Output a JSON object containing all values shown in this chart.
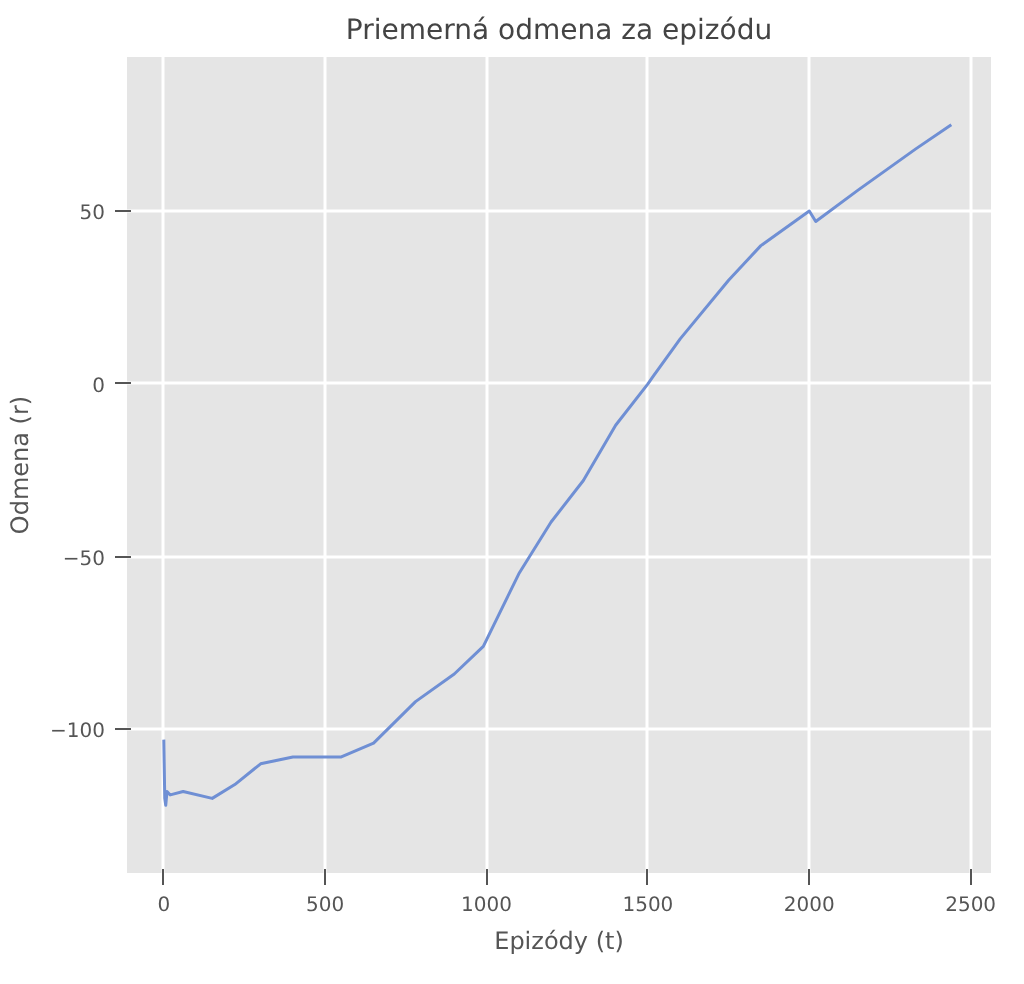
{
  "chart_data": {
    "type": "line",
    "title": "Priemerná odmena za epizódu",
    "xlabel": "Epizódy (t)",
    "ylabel": "Odmena (r)",
    "xlim": [
      -114,
      2563
    ],
    "ylim": [
      -141.6,
      94.6
    ],
    "xticks": [
      0,
      500,
      1000,
      1500,
      2000,
      2500
    ],
    "yticks": [
      -100,
      -50,
      0,
      50
    ],
    "grid": true,
    "series": [
      {
        "color": "#6f8fd4",
        "x": [
          0,
          3,
          6,
          10,
          20,
          60,
          150,
          220,
          300,
          400,
          550,
          650,
          780,
          900,
          990,
          1100,
          1200,
          1300,
          1400,
          1500,
          1515,
          1600,
          1750,
          1850,
          2000,
          2020,
          2150,
          2330,
          2440
        ],
        "values": [
          -103,
          -120,
          -122,
          -118,
          -119,
          -118,
          -120,
          -116,
          -110,
          -108,
          -108,
          -104,
          -92,
          -84,
          -76,
          -55,
          -40,
          -28,
          -12,
          0,
          2,
          13,
          30,
          40,
          50,
          47,
          56,
          68,
          75
        ]
      }
    ]
  }
}
